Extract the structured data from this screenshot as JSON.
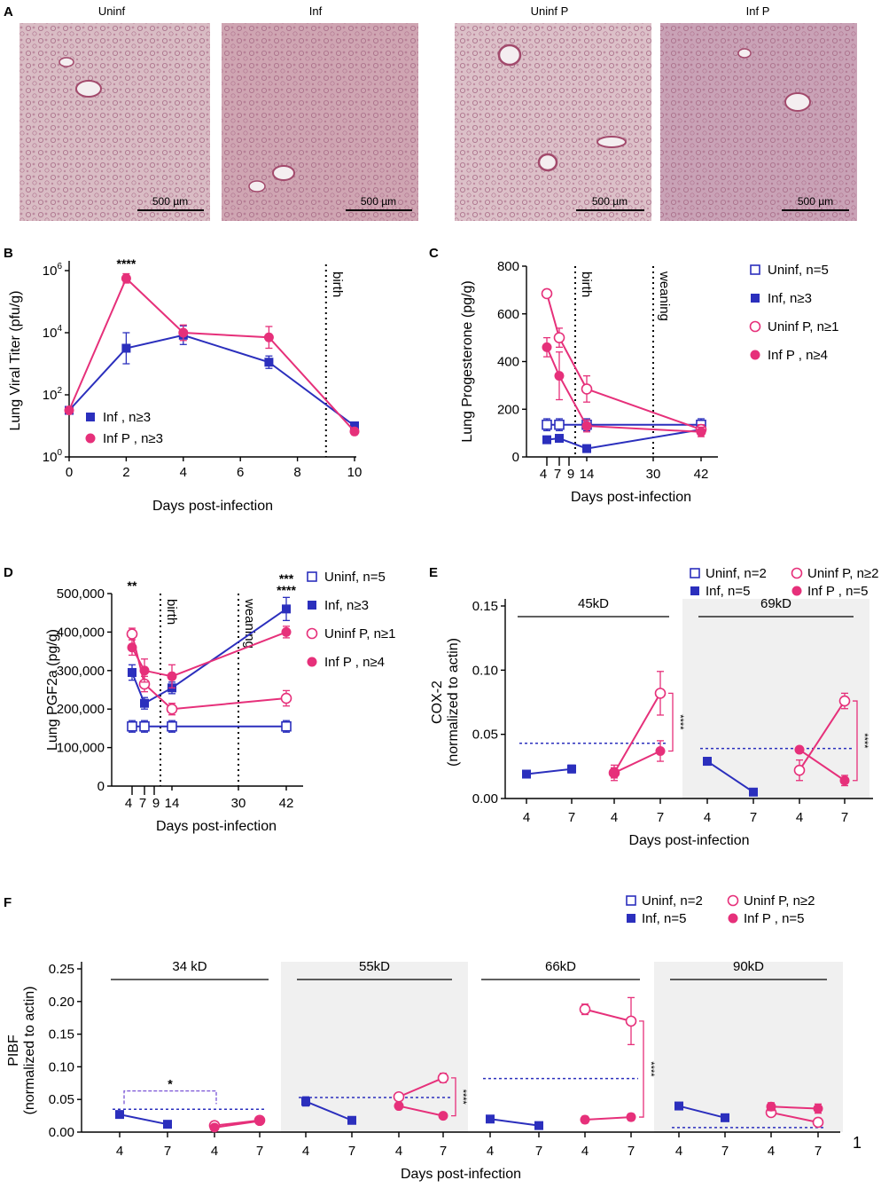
{
  "colors": {
    "blue": "#2b2fbd",
    "pink": "#e6307a",
    "shade": "#f0f0f0"
  },
  "panelA": {
    "label": "A",
    "images": [
      {
        "title": "Uninf",
        "scalebar": "500 µm",
        "tint": "#d9bcc4"
      },
      {
        "title": "Inf",
        "scalebar": "500 µm",
        "tint": "#cfa5b2"
      },
      {
        "title": "Uninf P",
        "scalebar": "500 µm",
        "tint": "#dcc0c8"
      },
      {
        "title": "Inf P",
        "scalebar": "500 µm",
        "tint": "#c9a2b6"
      }
    ]
  },
  "chart_data": [
    {
      "panel": "B",
      "type": "line",
      "yscale": "log10",
      "ylabel": "Lung Viral Titer (pfu/g)",
      "xlabel": "Days post-infection",
      "xticks": [
        "0",
        "2",
        "4",
        "6",
        "8",
        "10"
      ],
      "xlim": [
        0,
        10
      ],
      "yticks": [
        {
          "base": "10",
          "exp": "0"
        },
        {
          "base": "10",
          "exp": "2"
        },
        {
          "base": "10",
          "exp": "4"
        },
        {
          "base": "10",
          "exp": "6"
        }
      ],
      "ylim_exp": [
        0,
        6.2
      ],
      "series": [
        {
          "name": "Inf , n≥3",
          "marker": "square-filled",
          "color": "blue",
          "x": [
            0,
            2,
            4,
            7,
            10
          ],
          "y_exp": [
            1.5,
            3.5,
            3.92,
            3.05,
            1.0
          ],
          "err_exp": [
            0,
            0.5,
            0.3,
            0.2,
            0.1
          ]
        },
        {
          "name": "Inf P , n≥3",
          "marker": "circle-filled",
          "color": "pink",
          "x": [
            0,
            2,
            4,
            7,
            10
          ],
          "y_exp": [
            1.5,
            5.75,
            4.0,
            3.85,
            0.82
          ],
          "err_exp": [
            0,
            0.15,
            0.25,
            0.35,
            0.1
          ]
        }
      ],
      "vline": {
        "x": 9,
        "label": "birth"
      },
      "annotation": {
        "text": "****",
        "x": 2
      }
    },
    {
      "panel": "C",
      "type": "line",
      "ylabel": "Lung Progesterone (pg/g)",
      "xlabel": "Days post-infection",
      "xticks": [
        "4",
        "7",
        "9",
        "14",
        "30",
        "42"
      ],
      "ylim": [
        0,
        800
      ],
      "yticks": [
        "0",
        "200",
        "400",
        "600",
        "800"
      ],
      "series": [
        {
          "name": "Uninf, n=5",
          "marker": "square-open",
          "color": "blue",
          "x": [
            4,
            7,
            14,
            42
          ],
          "y": [
            135,
            135,
            135,
            135
          ],
          "err": [
            25,
            25,
            25,
            25
          ]
        },
        {
          "name": "Inf, n≥3",
          "marker": "square-filled",
          "color": "blue",
          "x": [
            4,
            7,
            14,
            42
          ],
          "y": [
            72,
            78,
            35,
            115
          ],
          "err": [
            8,
            8,
            6,
            15
          ]
        },
        {
          "name": "Uninf P, n≥1",
          "marker": "circle-open",
          "color": "pink",
          "x": [
            4,
            7,
            14,
            42
          ],
          "y": [
            685,
            500,
            285,
            115
          ],
          "err": [
            0,
            40,
            55,
            20
          ]
        },
        {
          "name": "Inf P , n≥4",
          "marker": "circle-filled",
          "color": "pink",
          "x": [
            4,
            7,
            14,
            42
          ],
          "y": [
            460,
            340,
            130,
            105
          ],
          "err": [
            40,
            100,
            25,
            20
          ]
        }
      ],
      "vlines": [
        {
          "x": 9,
          "label": "birth"
        },
        {
          "x": 30,
          "label": "weaning"
        }
      ]
    },
    {
      "panel": "D",
      "type": "line",
      "ylabel": "Lung PGF2a (pg/g)",
      "xlabel": "Days post-infection",
      "xticks": [
        "4",
        "7",
        "9",
        "14",
        "30",
        "42"
      ],
      "ylim": [
        0,
        500000
      ],
      "yticks": [
        "0",
        "100,000",
        "200,000",
        "300,000",
        "400,000",
        "500,000"
      ],
      "series": [
        {
          "name": "Uninf, n=5",
          "marker": "square-open",
          "color": "blue",
          "x": [
            4,
            7,
            14,
            42
          ],
          "y": [
            155000,
            155000,
            155000,
            155000
          ],
          "err": [
            15000,
            15000,
            15000,
            15000
          ]
        },
        {
          "name": "Inf, n≥3",
          "marker": "square-filled",
          "color": "blue",
          "x": [
            4,
            7,
            14,
            42
          ],
          "y": [
            295000,
            215000,
            255000,
            460000
          ],
          "err": [
            20000,
            15000,
            15000,
            30000
          ]
        },
        {
          "name": "Uninf P, n≥1",
          "marker": "circle-open",
          "color": "pink",
          "x": [
            4,
            7,
            14,
            42
          ],
          "y": [
            395000,
            265000,
            200000,
            228000
          ],
          "err": [
            15000,
            20000,
            15000,
            20000
          ]
        },
        {
          "name": "Inf P , n≥4",
          "marker": "circle-filled",
          "color": "pink",
          "x": [
            4,
            7,
            14,
            42
          ],
          "y": [
            360000,
            300000,
            285000,
            400000
          ],
          "err": [
            20000,
            30000,
            30000,
            15000
          ]
        }
      ],
      "vlines": [
        {
          "x": 9,
          "label": "birth"
        },
        {
          "x": 30,
          "label": "weaning"
        }
      ],
      "annotations": [
        {
          "text": "**",
          "x": 4,
          "color": "blue"
        },
        {
          "text": "***",
          "x": 42,
          "color": "pink"
        },
        {
          "text": "****",
          "x": 42,
          "color": "blue"
        }
      ]
    },
    {
      "panel": "E",
      "type": "line",
      "subtype": "grouped",
      "ylabel": "COX-2",
      "ylabel2": "(normalized to actin)",
      "xlabel": "Days post-infection",
      "ylim": [
        0,
        0.15
      ],
      "yticks": [
        "0.00",
        "0.05",
        "0.10",
        "0.15"
      ],
      "xticks": [
        "4",
        "7",
        "4",
        "7",
        "4",
        "7",
        "4",
        "7"
      ],
      "groups": [
        {
          "label": "45kD",
          "shaded": false,
          "inf": {
            "x": [
              0,
              1
            ],
            "y": [
              0.019,
              0.023
            ],
            "err": [
              0.002,
              0.003
            ]
          },
          "uninfP": {
            "x": [
              2,
              3
            ],
            "y": [
              0.02,
              0.082
            ],
            "err": [
              0.004,
              0.017
            ]
          },
          "infP": {
            "x": [
              2,
              3
            ],
            "y": [
              0.02,
              0.037
            ],
            "err": [
              0.006,
              0.008
            ]
          },
          "dashed": 0.043,
          "sig": "****"
        },
        {
          "label": "69kD",
          "shaded": true,
          "inf": {
            "x": [
              4,
              5
            ],
            "y": [
              0.029,
              0.005
            ],
            "err": [
              0.003,
              0.001
            ]
          },
          "uninfP": {
            "x": [
              6,
              7
            ],
            "y": [
              0.022,
              0.076
            ],
            "err": [
              0.008,
              0.006
            ]
          },
          "infP": {
            "x": [
              6,
              7
            ],
            "y": [
              0.038,
              0.014
            ],
            "err": [
              0.002,
              0.004
            ]
          },
          "dashed": 0.039,
          "sig": "****"
        }
      ],
      "legend": [
        "Uninf, n=2",
        "Uninf P, n≥2",
        "Inf, n=5",
        "Inf P , n=5"
      ]
    },
    {
      "panel": "F",
      "type": "line",
      "subtype": "grouped",
      "ylabel": "PIBF",
      "ylabel2": "(normalized to actin)",
      "xlabel": "Days post-infection",
      "ylim": [
        0,
        0.25
      ],
      "yticks": [
        "0.00",
        "0.05",
        "0.10",
        "0.15",
        "0.20",
        "0.25"
      ],
      "xticks": [
        "4",
        "7",
        "4",
        "7",
        "4",
        "7",
        "4",
        "7",
        "4",
        "7",
        "4",
        "7",
        "4",
        "7",
        "4",
        "7"
      ],
      "groups": [
        {
          "label": "34 kD",
          "shaded": false,
          "inf": {
            "x": [
              0,
              1
            ],
            "y": [
              0.027,
              0.012
            ],
            "err": [
              0.004,
              0.001
            ]
          },
          "uninfP": {
            "x": [
              2,
              3
            ],
            "y": [
              0.01,
              0.018
            ],
            "err": [
              0.003,
              0.003
            ]
          },
          "infP": {
            "x": [
              2,
              3
            ],
            "y": [
              0.007,
              0.017
            ],
            "err": [
              0.003,
              0.003
            ]
          },
          "dashed": 0.035,
          "sig": "*"
        },
        {
          "label": "55kD",
          "shaded": true,
          "inf": {
            "x": [
              4,
              5
            ],
            "y": [
              0.047,
              0.018
            ],
            "err": [
              0.007,
              0.001
            ]
          },
          "uninfP": {
            "x": [
              6,
              7
            ],
            "y": [
              0.054,
              0.083
            ],
            "err": [
              0.003,
              0.007
            ]
          },
          "infP": {
            "x": [
              6,
              7
            ],
            "y": [
              0.04,
              0.025
            ],
            "err": [
              0.004,
              0.004
            ]
          },
          "dashed": 0.053,
          "sig": "****"
        },
        {
          "label": "66kD",
          "shaded": false,
          "inf": {
            "x": [
              8,
              9
            ],
            "y": [
              0.02,
              0.01
            ],
            "err": [
              0.001,
              0.001
            ]
          },
          "uninfP": {
            "x": [
              10,
              11
            ],
            "y": [
              0.188,
              0.17
            ],
            "err": [
              0.008,
              0.036
            ]
          },
          "infP": {
            "x": [
              10,
              11
            ],
            "y": [
              0.019,
              0.023
            ],
            "err": [
              0.005,
              0.005
            ]
          },
          "dashed": 0.082,
          "sig": "****"
        },
        {
          "label": "90kD",
          "shaded": true,
          "inf": {
            "x": [
              12,
              13
            ],
            "y": [
              0.04,
              0.022
            ],
            "err": [
              0.005,
              0.002
            ]
          },
          "uninfP": {
            "x": [
              14,
              15
            ],
            "y": [
              0.03,
              0.015
            ],
            "err": [
              0.004,
              0.004
            ]
          },
          "infP": {
            "x": [
              14,
              15
            ],
            "y": [
              0.039,
              0.036
            ],
            "err": [
              0.006,
              0.007
            ]
          },
          "dashed": 0.007,
          "sig": ""
        }
      ],
      "legend": [
        "Uninf, n=2",
        "Uninf P, n≥2",
        "Inf, n=5",
        "Inf P , n=5"
      ]
    }
  ],
  "page_number": "1"
}
